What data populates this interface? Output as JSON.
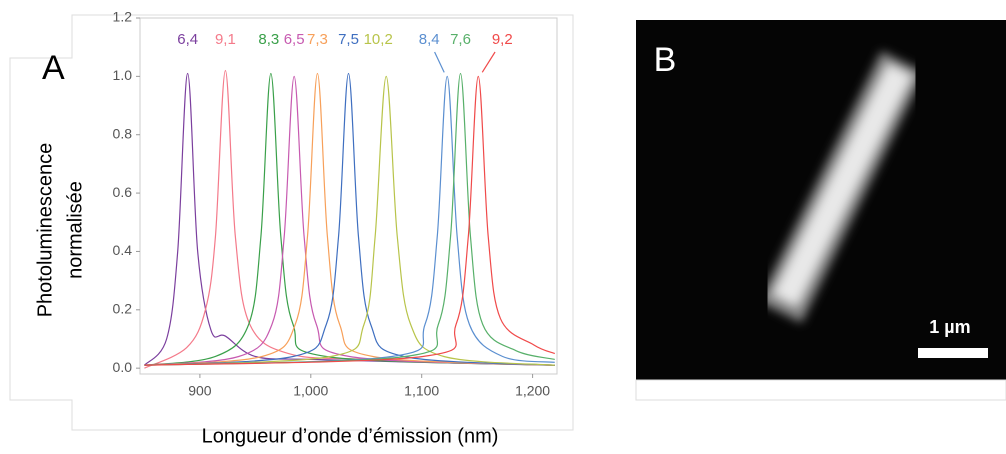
{
  "chart_data": {
    "type": "line",
    "panel_label": "A",
    "ylabel": [
      "Photoluminescence",
      "normalisée"
    ],
    "xlabel": "Longueur d’onde d’émission (nm)",
    "xlim": [
      846,
      1222
    ],
    "ylim": [
      -0.02,
      1.2
    ],
    "xticks": [
      900,
      {
        "value": 1000,
        "label": "1,000"
      },
      {
        "value": 1100,
        "label": "1,100"
      },
      {
        "value": 1200,
        "label": "1,200"
      }
    ],
    "yticks": [
      {
        "value": 0,
        "label": "0.0"
      },
      0.2,
      0.4,
      0.6,
      0.8,
      {
        "value": 1,
        "label": "1.0"
      },
      1.2
    ],
    "series": [
      {
        "name": "6,4",
        "color": "#7b3f9e",
        "x": [
          850,
          870,
          880,
          889,
          898,
          910,
          923,
          950,
          1000,
          1100,
          1220
        ],
        "values": [
          0.01,
          0.1,
          0.4,
          1.01,
          0.4,
          0.13,
          0.11,
          0.04,
          0.03,
          0.02,
          0.01
        ]
      },
      {
        "name": "9,1",
        "color": "#f47a8a",
        "x": [
          850,
          888,
          905,
          914,
          923,
          932,
          945,
          980,
          1050,
          1220
        ],
        "values": [
          0.0,
          0.07,
          0.2,
          0.45,
          1.02,
          0.45,
          0.15,
          0.05,
          0.03,
          0.01
        ]
      },
      {
        "name": "8,3",
        "color": "#3aa04a",
        "x": [
          850,
          914,
          944,
          955,
          964,
          973,
          984,
          1014,
          1220
        ],
        "values": [
          0.01,
          0.04,
          0.15,
          0.45,
          1.01,
          0.45,
          0.15,
          0.04,
          0.01
        ]
      },
      {
        "name": "6,5",
        "color": "#c75ab0",
        "x": [
          850,
          935,
          965,
          976,
          985,
          994,
          1005,
          1035,
          1220
        ],
        "values": [
          0.01,
          0.04,
          0.15,
          0.45,
          1.0,
          0.45,
          0.15,
          0.04,
          0.01
        ]
      },
      {
        "name": "7,3",
        "color": "#f7a05a",
        "x": [
          850,
          956,
          986,
          997,
          1006,
          1015,
          1026,
          1056,
          1220
        ],
        "values": [
          0.01,
          0.04,
          0.15,
          0.45,
          1.01,
          0.45,
          0.15,
          0.04,
          0.01
        ]
      },
      {
        "name": "7,5",
        "color": "#3f6fc0",
        "x": [
          850,
          984,
          1014,
          1025,
          1034,
          1043,
          1054,
          1084,
          1220
        ],
        "values": [
          0.01,
          0.04,
          0.15,
          0.45,
          1.01,
          0.45,
          0.15,
          0.04,
          0.01
        ]
      },
      {
        "name": "10,2",
        "color": "#b8c44a",
        "x": [
          850,
          1018,
          1048,
          1058,
          1068,
          1078,
          1090,
          1120,
          1220
        ],
        "values": [
          0.01,
          0.04,
          0.15,
          0.45,
          1.0,
          0.45,
          0.15,
          0.04,
          0.01
        ]
      },
      {
        "name": "8,4",
        "color": "#5b8fd0",
        "x": [
          850,
          1073,
          1103,
          1114,
          1123,
          1132,
          1143,
          1173,
          1220
        ],
        "values": [
          0.01,
          0.04,
          0.15,
          0.45,
          1.0,
          0.45,
          0.15,
          0.04,
          0.02
        ]
      },
      {
        "name": "7,6",
        "color": "#58b06a",
        "x": [
          850,
          1085,
          1115,
          1126,
          1135,
          1144,
          1155,
          1185,
          1220
        ],
        "values": [
          0.01,
          0.04,
          0.15,
          0.45,
          1.01,
          0.45,
          0.15,
          0.06,
          0.03
        ]
      },
      {
        "name": "9,2",
        "color": "#f04a4a",
        "x": [
          850,
          1101,
          1131,
          1142,
          1151,
          1160,
          1171,
          1201,
          1220
        ],
        "values": [
          0.01,
          0.04,
          0.15,
          0.45,
          1.0,
          0.45,
          0.17,
          0.08,
          0.05
        ]
      }
    ]
  },
  "image_panel": {
    "panel_label": "B",
    "scale_bar": "1 µm"
  }
}
